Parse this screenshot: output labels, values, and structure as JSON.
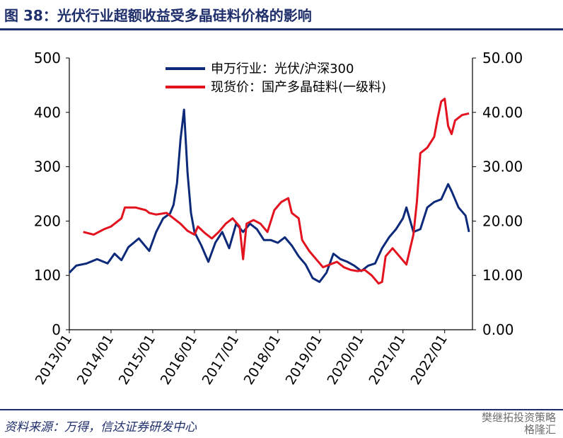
{
  "title": "图 38：光伏行业超额收益受多晶硅料价格的影响",
  "source": "资料来源：万得，信达证券研发中心",
  "watermark": [
    "樊继拓投资策略",
    "格隆汇"
  ],
  "colors": {
    "series1": "#0d2a7a",
    "series2": "#e3121f",
    "title": "#1f2f6b"
  },
  "chart_data": {
    "type": "line",
    "x_axis": {
      "tick_labels": [
        "2013/01",
        "2014/01",
        "2015/01",
        "2016/01",
        "2017/01",
        "2018/01",
        "2019/01",
        "2020/01",
        "2021/01",
        "2022/01"
      ],
      "range": [
        "2013-01",
        "2022-09"
      ]
    },
    "y_left": {
      "range": [
        0,
        500
      ],
      "ticks": [
        "0",
        "100",
        "200",
        "300",
        "400",
        "500"
      ]
    },
    "y_right": {
      "range": [
        0,
        50
      ],
      "ticks": [
        "0.00",
        "10.00",
        "20.00",
        "30.00",
        "40.00",
        "50.00"
      ]
    },
    "legend_position": "top-center",
    "grid": false,
    "series": [
      {
        "name": "申万行业：光伏/沪深300",
        "axis": "left",
        "points": [
          [
            "2013-01",
            105
          ],
          [
            "2013-03",
            118
          ],
          [
            "2013-06",
            122
          ],
          [
            "2013-09",
            130
          ],
          [
            "2013-12",
            122
          ],
          [
            "2014-02",
            140
          ],
          [
            "2014-04",
            128
          ],
          [
            "2014-06",
            152
          ],
          [
            "2014-09",
            168
          ],
          [
            "2014-12",
            145
          ],
          [
            "2015-02",
            180
          ],
          [
            "2015-04",
            205
          ],
          [
            "2015-06",
            214
          ],
          [
            "2015-07",
            230
          ],
          [
            "2015-08",
            270
          ],
          [
            "2015-09",
            350
          ],
          [
            "2015-10",
            405
          ],
          [
            "2015-11",
            290
          ],
          [
            "2015-12",
            215
          ],
          [
            "2016-01",
            180
          ],
          [
            "2016-03",
            155
          ],
          [
            "2016-04",
            140
          ],
          [
            "2016-05",
            125
          ],
          [
            "2016-07",
            160
          ],
          [
            "2016-09",
            180
          ],
          [
            "2016-11",
            150
          ],
          [
            "2017-01",
            195
          ],
          [
            "2017-03",
            180
          ],
          [
            "2017-05",
            195
          ],
          [
            "2017-07",
            185
          ],
          [
            "2017-09",
            165
          ],
          [
            "2017-11",
            165
          ],
          [
            "2018-01",
            160
          ],
          [
            "2018-03",
            170
          ],
          [
            "2018-05",
            155
          ],
          [
            "2018-07",
            135
          ],
          [
            "2018-09",
            120
          ],
          [
            "2018-11",
            95
          ],
          [
            "2019-01",
            88
          ],
          [
            "2019-03",
            105
          ],
          [
            "2019-05",
            140
          ],
          [
            "2019-07",
            130
          ],
          [
            "2019-09",
            125
          ],
          [
            "2019-11",
            118
          ],
          [
            "2020-01",
            108
          ],
          [
            "2020-03",
            118
          ],
          [
            "2020-05",
            122
          ],
          [
            "2020-07",
            150
          ],
          [
            "2020-09",
            170
          ],
          [
            "2020-11",
            185
          ],
          [
            "2021-01",
            205
          ],
          [
            "2021-02",
            225
          ],
          [
            "2021-04",
            180
          ],
          [
            "2021-06",
            185
          ],
          [
            "2021-08",
            225
          ],
          [
            "2021-10",
            235
          ],
          [
            "2021-12",
            240
          ],
          [
            "2022-02",
            268
          ],
          [
            "2022-03",
            255
          ],
          [
            "2022-05",
            225
          ],
          [
            "2022-07",
            210
          ],
          [
            "2022-08",
            180
          ]
        ]
      },
      {
        "name": "现货价：国产多晶硅料(一级料)",
        "axis": "right",
        "points": [
          [
            "2013-05",
            18.0
          ],
          [
            "2013-08",
            17.5
          ],
          [
            "2013-11",
            18.5
          ],
          [
            "2014-01",
            19.0
          ],
          [
            "2014-04",
            20.5
          ],
          [
            "2014-05",
            22.5
          ],
          [
            "2014-08",
            22.5
          ],
          [
            "2014-11",
            22.0
          ],
          [
            "2014-12",
            21.5
          ],
          [
            "2015-02",
            21.2
          ],
          [
            "2015-05",
            21.5
          ],
          [
            "2015-07",
            20.5
          ],
          [
            "2015-09",
            19.5
          ],
          [
            "2015-11",
            18.2
          ],
          [
            "2016-01",
            17.5
          ],
          [
            "2016-02",
            19.0
          ],
          [
            "2016-04",
            17.8
          ],
          [
            "2016-06",
            16.8
          ],
          [
            "2016-08",
            18.0
          ],
          [
            "2016-10",
            19.5
          ],
          [
            "2016-12",
            20.5
          ],
          [
            "2017-02",
            19.0
          ],
          [
            "2017-03",
            13.0
          ],
          [
            "2017-04",
            19.5
          ],
          [
            "2017-06",
            20.2
          ],
          [
            "2017-08",
            19.5
          ],
          [
            "2017-10",
            18.0
          ],
          [
            "2017-12",
            22.0
          ],
          [
            "2018-02",
            23.5
          ],
          [
            "2018-04",
            24.2
          ],
          [
            "2018-05",
            21.5
          ],
          [
            "2018-07",
            20.5
          ],
          [
            "2018-08",
            16.5
          ],
          [
            "2018-10",
            14.5
          ],
          [
            "2018-12",
            13.0
          ],
          [
            "2019-02",
            11.5
          ],
          [
            "2019-04",
            12.0
          ],
          [
            "2019-06",
            12.5
          ],
          [
            "2019-08",
            11.5
          ],
          [
            "2019-10",
            11.0
          ],
          [
            "2019-12",
            10.8
          ],
          [
            "2020-02",
            11.0
          ],
          [
            "2020-04",
            10.0
          ],
          [
            "2020-06",
            8.5
          ],
          [
            "2020-07",
            8.8
          ],
          [
            "2020-08",
            13.5
          ],
          [
            "2020-10",
            15.0
          ],
          [
            "2020-12",
            13.5
          ],
          [
            "2021-02",
            12.0
          ],
          [
            "2021-04",
            17.5
          ],
          [
            "2021-05",
            23.5
          ],
          [
            "2021-06",
            32.5
          ],
          [
            "2021-08",
            33.5
          ],
          [
            "2021-10",
            35.5
          ],
          [
            "2021-11",
            39.0
          ],
          [
            "2021-12",
            42.0
          ],
          [
            "2022-01",
            42.5
          ],
          [
            "2022-02",
            37.5
          ],
          [
            "2022-03",
            36.0
          ],
          [
            "2022-04",
            38.5
          ],
          [
            "2022-06",
            39.5
          ],
          [
            "2022-08",
            39.8
          ]
        ]
      }
    ]
  }
}
